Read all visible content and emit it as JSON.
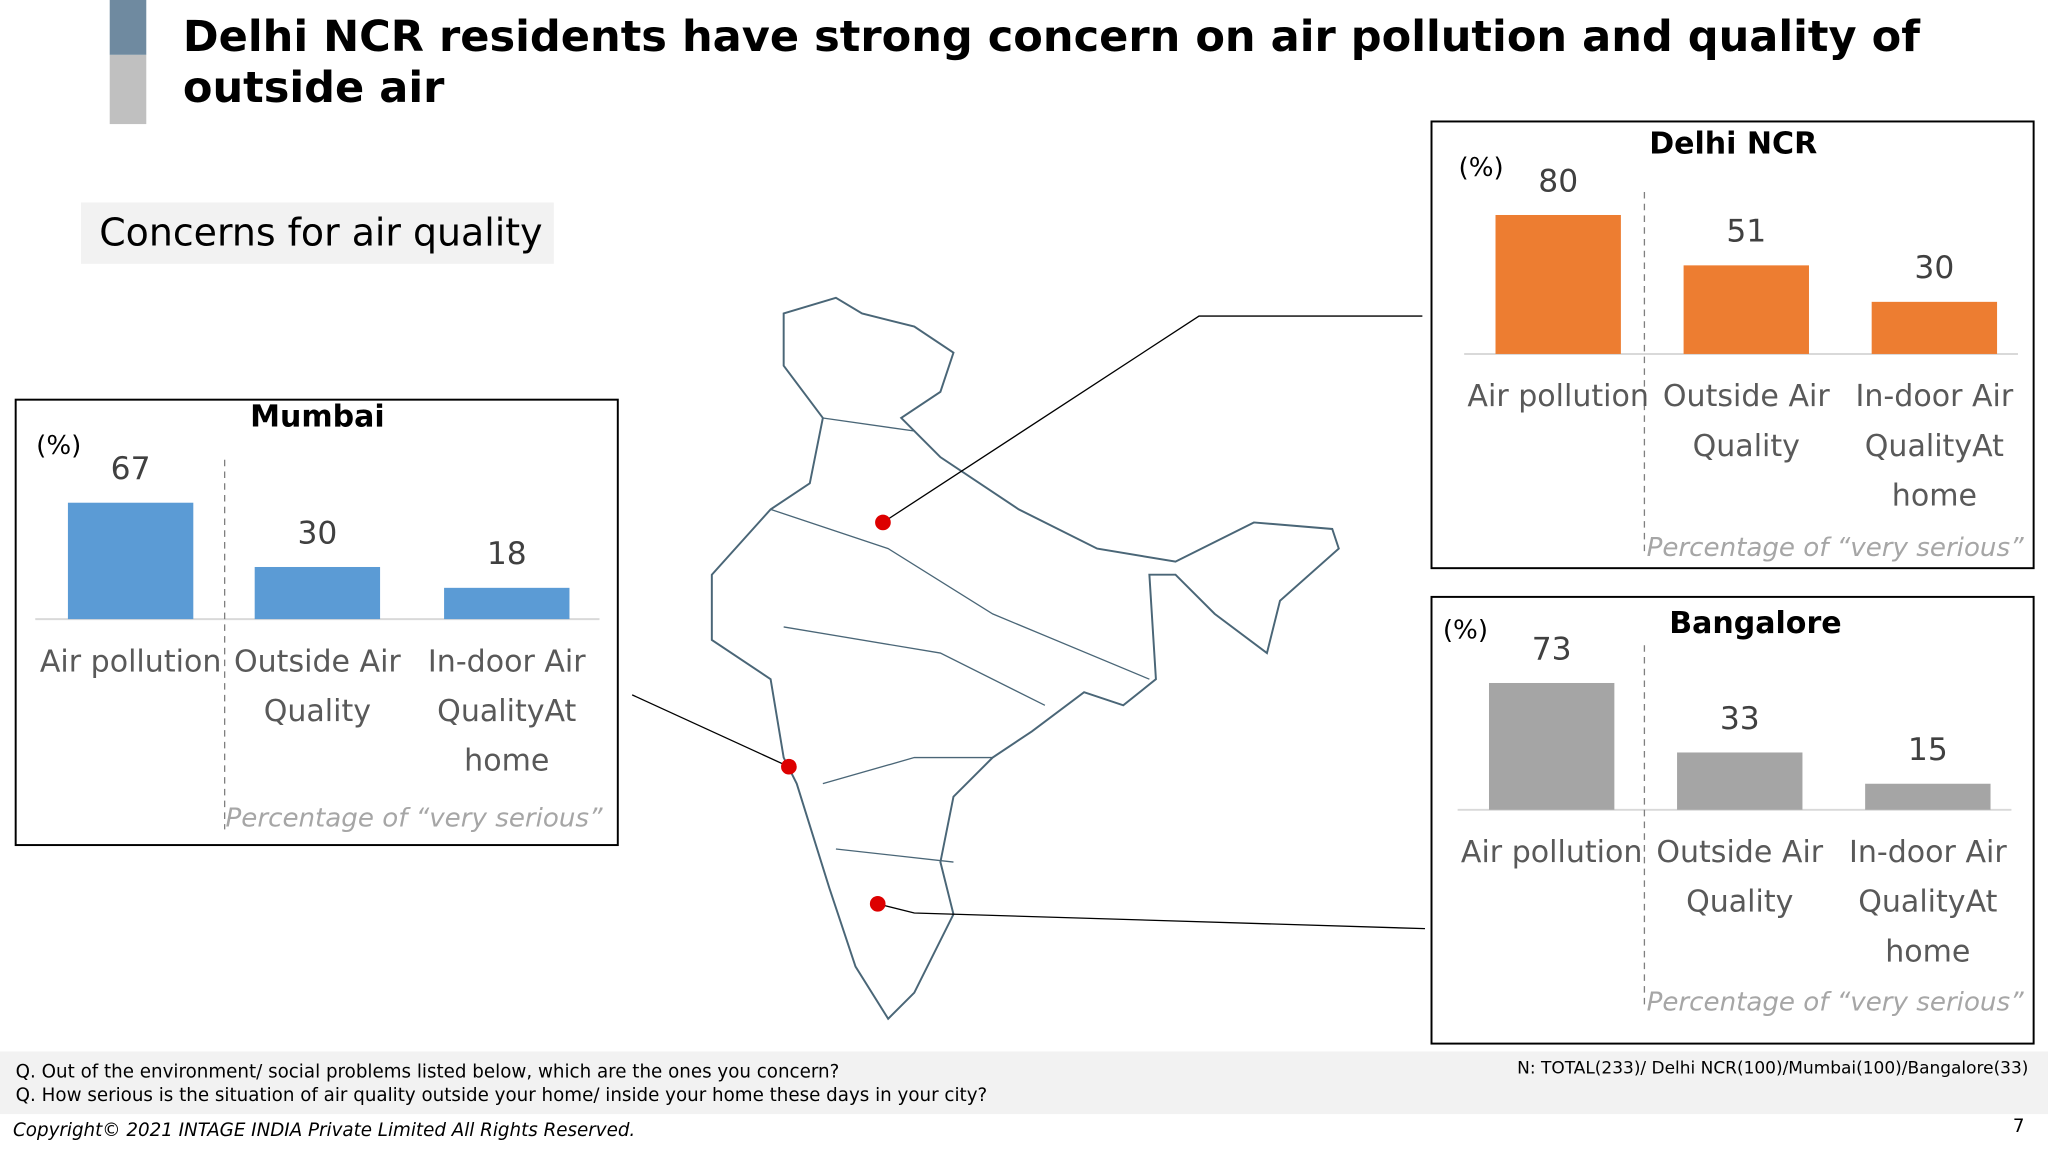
{
  "title": "Delhi NCR residents have strong concern on air pollution and quality of outside air",
  "section_label": "Concerns for air quality",
  "notes": [
    "Q. Out of the environment/ social problems listed below, which are the ones you concern?",
    "Q. How serious is the situation of air quality outside your home/ inside your home these days in your city?"
  ],
  "sample_note": "N: TOTAL(233)/ Delhi NCR(100)/Mumbai(100)/Bangalore(33)",
  "copyright": "Copyright© 2021 INTAGE INDIA Private Limited  All Rights Reserved.",
  "page_number": "7",
  "chart_data": [
    {
      "type": "bar",
      "title": "Delhi NCR",
      "unit_label": "(%)",
      "categories": [
        "Air pollution",
        "Outside Air Quality",
        "In-door Air QualityAt home"
      ],
      "values": [
        80,
        51,
        30
      ],
      "color": "#ed7d31",
      "ylim": [
        0,
        100
      ],
      "footnote": "Percentage of “very serious”"
    },
    {
      "type": "bar",
      "title": "Mumbai",
      "unit_label": "(%)",
      "categories": [
        "Air pollution",
        "Outside Air Quality",
        "In-door Air QualityAt home"
      ],
      "values": [
        67,
        30,
        18
      ],
      "color": "#5b9bd5",
      "ylim": [
        0,
        100
      ],
      "footnote": "Percentage of “very serious”"
    },
    {
      "type": "bar",
      "title": "Bangalore",
      "unit_label": "(%)",
      "categories": [
        "Air pollution",
        "Outside Air Quality",
        "In-door Air QualityAt home"
      ],
      "values": [
        73,
        33,
        15
      ],
      "color": "#a5a5a5",
      "ylim": [
        0,
        100
      ],
      "footnote": "Percentage of “very serious”"
    }
  ]
}
